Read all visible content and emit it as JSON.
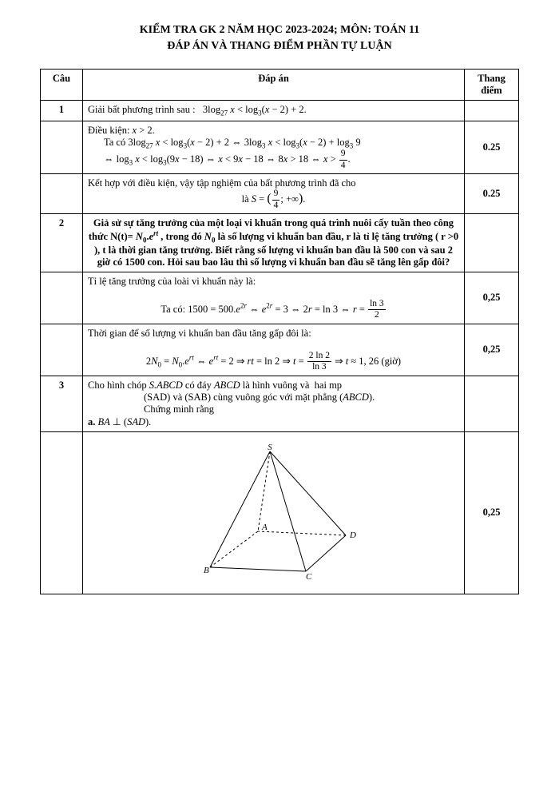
{
  "header": {
    "line1": "KIỂM TRA GK 2 NĂM HỌC 2023-2024; MÔN: TOÁN 11",
    "line2": "ĐÁP ÁN VÀ THANG ĐIỂM PHẦN TỰ LUẬN"
  },
  "table": {
    "headers": {
      "cau": "Câu",
      "dapan": "Đáp án",
      "thang": "Thang điểm"
    },
    "rows": [
      {
        "cau": "1",
        "content_html": "Giải bất phương trình sau :&nbsp;&nbsp; 3log<span class='sub'>27</span> <i>x</i> &lt; log<span class='sub'>3</span>(<i>x</i> − 2) + 2.",
        "score": ""
      },
      {
        "cau": "",
        "content_html": "Điều kiện: <i>x</i> &gt; 2.<br><span class='indent'>Ta có 3log<span class='sub'>27</span> <i>x</i> &lt; log<span class='sub'>3</span>(<i>x</i> − 2) + 2 ⇔ 3log<span class='sub'>3</span> <i>x</i> &lt; log<span class='sub'>3</span>(<i>x</i> − 2) + log<span class='sub'>3</span> 9</span><br><span class='indent'>⇔ log<span class='sub'>3</span> <i>x</i> &lt; log<span class='sub'>3</span>(9<i>x</i> − 18) ⇔ <i>x</i> &lt; 9<i>x</i> − 18 ⇔ 8<i>x</i> &gt; 18 ⇔ <i>x</i> &gt; <span class='frac'><span class='num'>9</span><span class='den'>4</span></span>.</span>",
        "score": "0.25"
      },
      {
        "cau": "",
        "content_html": "Kết hợp với điều kiện, vậy tập nghiệm của bất phương trình đã cho<br><div class='center'>là <i>S</i> = <span style='font-size:16px;'>(</span><span class='frac'><span class='num'>9</span><span class='den'>4</span></span>; +∞<span style='font-size:16px;'>)</span>.</div>",
        "score": "0.25"
      },
      {
        "cau": "2",
        "content_html": "<div class='center bold'>Giả sử sự tăng trưởng của một loại vi khuẩn trong quá trình nuôi cấy tuần theo công thức N(t)= <i>N</i><span class='sub'>0</span>.<i>e</i><span class='sup'><i>rt</i></span> , trong đó <i>N</i><span class='sub'>0</span> là số lượng vi khuẩn ban đầu, r là tỉ lệ tăng trưởng ( r &gt;0 ), t là thời gian tăng trưởng. Biết rằng số lượng vi khuẩn ban đầu là 500 con và sau 2 giờ có 1500 con. Hỏi sau bao lâu thì số lượng vi khuẩn ban đầu sẽ tăng lên gấp đôi?</div>",
        "score": ""
      },
      {
        "cau": "",
        "content_html": "Tỉ lệ tăng trưởng của loài vi khuẩn này là:<br><br><div class='center'>Ta có: 1500 = 500.<i>e</i><span class='sup'>2<i>r</i></span> ⇔ <i>e</i><span class='sup'>2<i>r</i></span> = 3 ⇔ 2<i>r</i> = ln 3 ⇔ <i>r</i> = <span class='frac'><span class='num'>ln 3</span><span class='den'>2</span></span></div>",
        "score": "0,25"
      },
      {
        "cau": "",
        "content_html": "Thời gian để số lượng vi khuẩn ban đầu tăng gấp đôi là:<br><br><div class='center'>2<i>N</i><span class='sub'>0</span> = <i>N</i><span class='sub'>0</span>.<i>e</i><span class='sup'><i>rt</i></span> ⇔ <i>e</i><span class='sup'><i>rt</i></span> = 2 ⇒ <i>rt</i> = ln 2 ⇒ <i>t</i> = <span class='frac'><span class='num'>2 ln 2</span><span class='den'>ln 3</span></span> ⇒ <i>t</i> ≈ 1, 26 (giờ)</div>",
        "score": "0,25"
      },
      {
        "cau": "3",
        "content_html": "Cho hình chóp <i>S.ABCD</i> có đáy <i>ABCD</i> là hình vuông và&nbsp; hai mp<br><div style='padding-left:70px;'>(SAD) và (SAB) cùng vuông góc với mặt phẳng (<i>ABCD</i>).</div><div style='padding-left:70px;'>Chứng minh rằng</div><b>a.</b> <i>BA</i> ⊥ (<i>SAD</i>).",
        "score": ""
      },
      {
        "cau": "",
        "content_html": "__FIGURE__",
        "score": "0,25"
      }
    ]
  },
  "figure": {
    "labels": {
      "S": "S",
      "A": "A",
      "B": "B",
      "C": "C",
      "D": "D"
    },
    "stroke": "#000000",
    "dash": "3,3"
  }
}
